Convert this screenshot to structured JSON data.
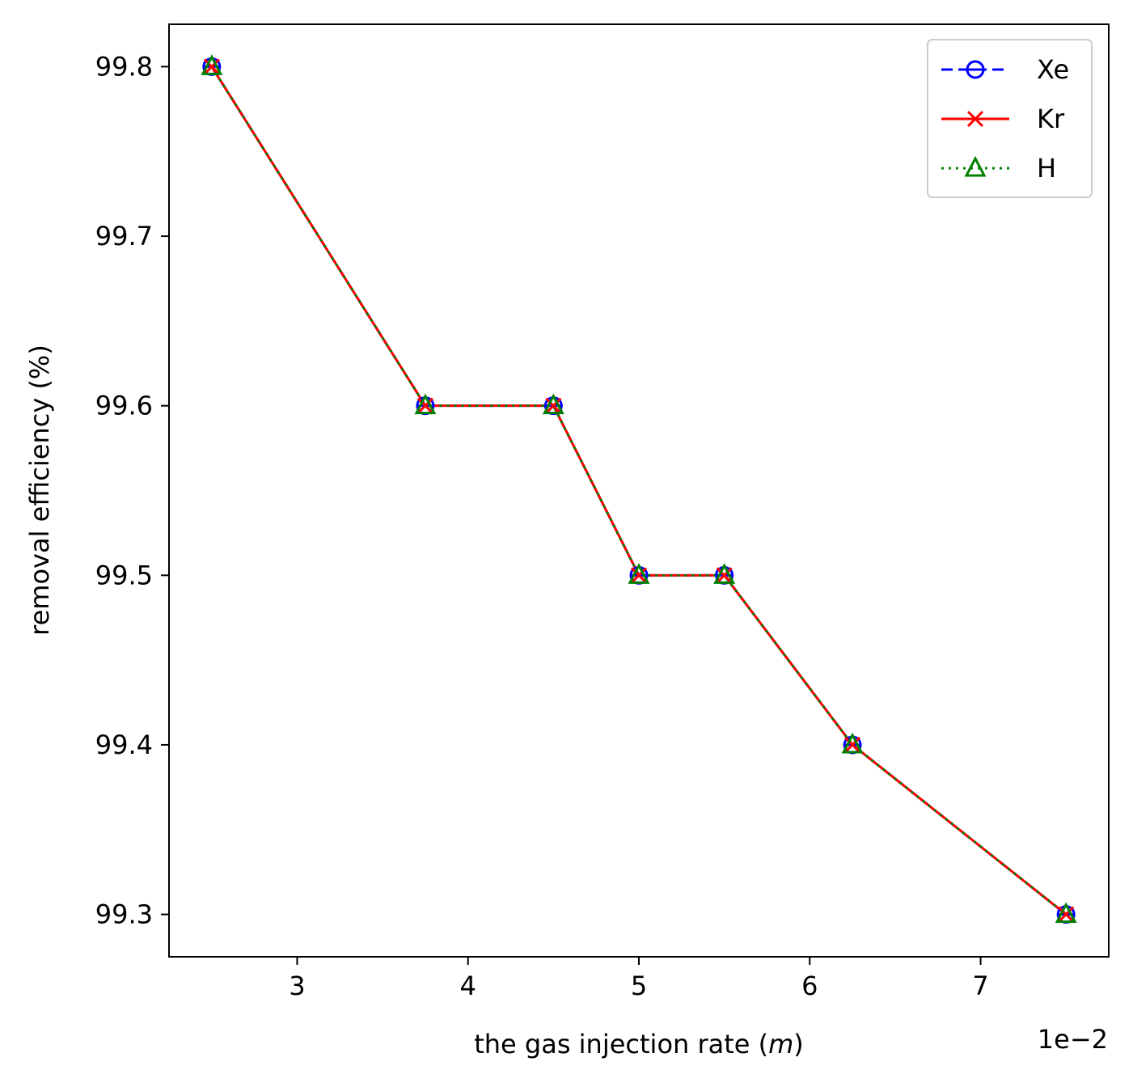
{
  "chart_data": {
    "type": "line",
    "xlabel": "the gas injection rate (",
    "xlabel_italic": "m",
    "xlabel_end": ")",
    "ylabel": "removal efficiency (%)",
    "offset_text": "1e−2",
    "x": [
      2.5,
      3.75,
      4.5,
      5.0,
      5.5,
      6.25,
      7.5
    ],
    "xlim": [
      2.25,
      7.75
    ],
    "ylim": [
      99.275,
      99.825
    ],
    "xticks": [
      3,
      4,
      5,
      6,
      7
    ],
    "yticks": [
      99.3,
      99.4,
      99.5,
      99.6,
      99.7,
      99.8
    ],
    "grid": false,
    "legend_position": "upper right",
    "series": [
      {
        "name": "Xe",
        "values": [
          99.8,
          99.6,
          99.6,
          99.5,
          99.5,
          99.4,
          99.3
        ],
        "color": "#0000ff",
        "dash": "dashed",
        "marker": "circle-minus"
      },
      {
        "name": "Kr",
        "values": [
          99.8,
          99.6,
          99.6,
          99.5,
          99.5,
          99.4,
          99.3
        ],
        "color": "#ff0000",
        "dash": "solid",
        "marker": "x"
      },
      {
        "name": "H",
        "values": [
          99.8,
          99.6,
          99.6,
          99.5,
          99.5,
          99.4,
          99.3
        ],
        "color": "#008000",
        "dash": "dotted",
        "marker": "triangle"
      }
    ]
  }
}
